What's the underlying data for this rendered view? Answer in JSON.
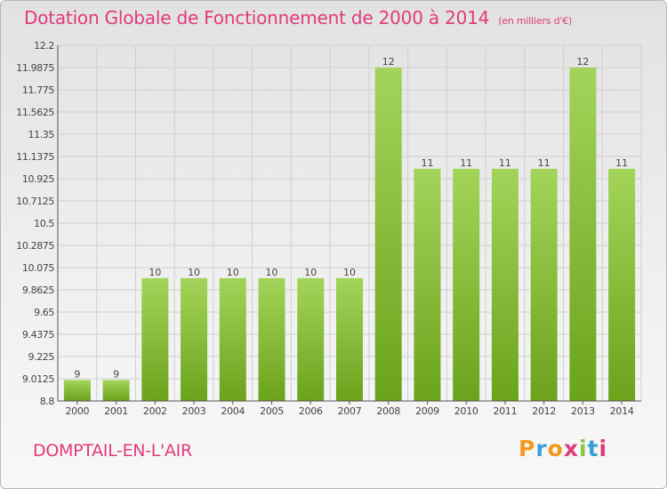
{
  "header": {
    "title": "Dotation Globale de Fonctionnement de 2000 à 2014",
    "subtitle": "(en milliers d'€)"
  },
  "footer": {
    "commune": "DOMPTAIL-EN-L'AIR",
    "logo": "Proxiti"
  },
  "colors": {
    "title": "#e23a7a",
    "bar_light": "#a3d45a",
    "bar_dark": "#6ba31c",
    "grid": "#cfcfcf",
    "axis": "#555555"
  },
  "chart_data": {
    "type": "bar",
    "categories": [
      "2000",
      "2001",
      "2002",
      "2003",
      "2004",
      "2005",
      "2006",
      "2007",
      "2008",
      "2009",
      "2010",
      "2011",
      "2012",
      "2013",
      "2014"
    ],
    "values": [
      9,
      9,
      10,
      10,
      10,
      10,
      10,
      10,
      12,
      11,
      11,
      11,
      11,
      12,
      11
    ],
    "value_labels": [
      "9",
      "9",
      "10",
      "10",
      "10",
      "10",
      "10",
      "10",
      "12",
      "11",
      "11",
      "11",
      "11",
      "12",
      "11"
    ],
    "plotted_values": [
      9,
      9,
      9.9745,
      9.9745,
      9.9745,
      9.9745,
      9.9745,
      9.9745,
      11.9875,
      11.02,
      11.02,
      11.02,
      11.02,
      11.9875,
      11.02
    ],
    "yticks": [
      "8.8",
      "9.0125",
      "9.225",
      "9.4375",
      "9.65",
      "9.8625",
      "10.075",
      "10.2875",
      "10.5",
      "10.7125",
      "10.925",
      "11.1375",
      "11.35",
      "11.5625",
      "11.775",
      "11.9875",
      "12.2"
    ],
    "ylim": [
      8.8,
      12.2
    ],
    "title": "Dotation Globale de Fonctionnement de 2000 à 2014",
    "xlabel": "",
    "ylabel": "",
    "grid": true,
    "legend": "none"
  }
}
